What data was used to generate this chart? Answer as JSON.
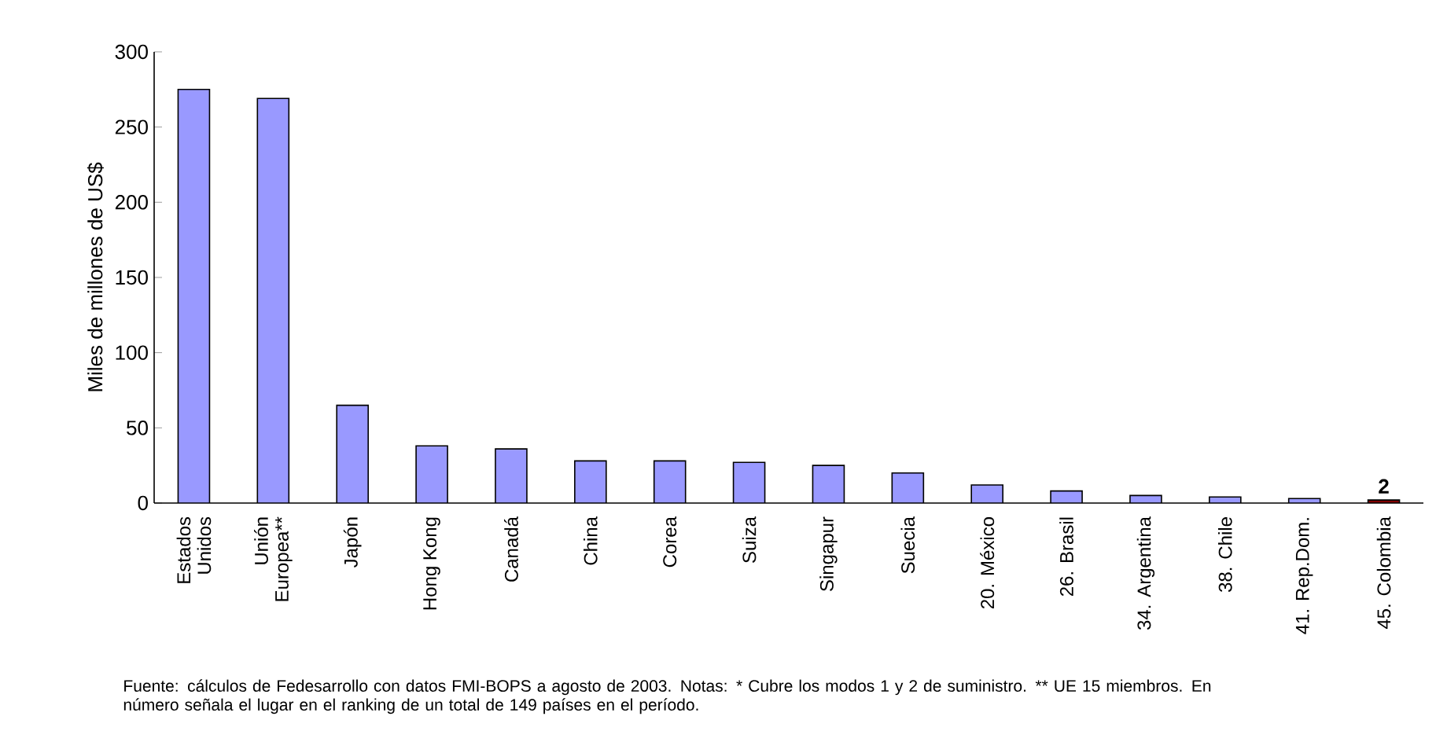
{
  "chart_data": {
    "type": "bar",
    "ylabel": "Miles de millones de US$",
    "categories": [
      "Estados Unidos",
      "Unión Europea**",
      "Japón",
      "Hong Kong",
      "Canadá",
      "China",
      "Corea",
      "Suiza",
      "Singapur",
      "Suecia",
      "20. México",
      "26. Brasil",
      "34. Argentina",
      "38. Chile",
      "41. Rep.Dom.",
      "45. Colombia"
    ],
    "values": [
      275,
      269,
      65,
      38,
      36,
      28,
      28,
      27,
      25,
      20,
      12,
      8,
      5,
      4,
      3,
      2
    ],
    "colors": [
      "#9999ff",
      "#9999ff",
      "#9999ff",
      "#9999ff",
      "#9999ff",
      "#9999ff",
      "#9999ff",
      "#9999ff",
      "#9999ff",
      "#9999ff",
      "#9999ff",
      "#9999ff",
      "#9999ff",
      "#9999ff",
      "#9999ff",
      "#800000"
    ],
    "value_labels": [
      null,
      null,
      null,
      null,
      null,
      null,
      null,
      null,
      null,
      null,
      null,
      null,
      null,
      null,
      null,
      "2"
    ],
    "ylim": [
      0,
      300
    ],
    "yticks": [
      0,
      50,
      100,
      150,
      200,
      250,
      300
    ],
    "annotations": [
      "Fuente: cálculos de Fedesarrollo con datos FMI-BOPS a agosto de 2003.  Notas: * Cubre los modos 1 y 2 de suministro. ** UE 15 miembros. En número señala el lugar en el ranking de un total de 149 países en el período."
    ]
  }
}
